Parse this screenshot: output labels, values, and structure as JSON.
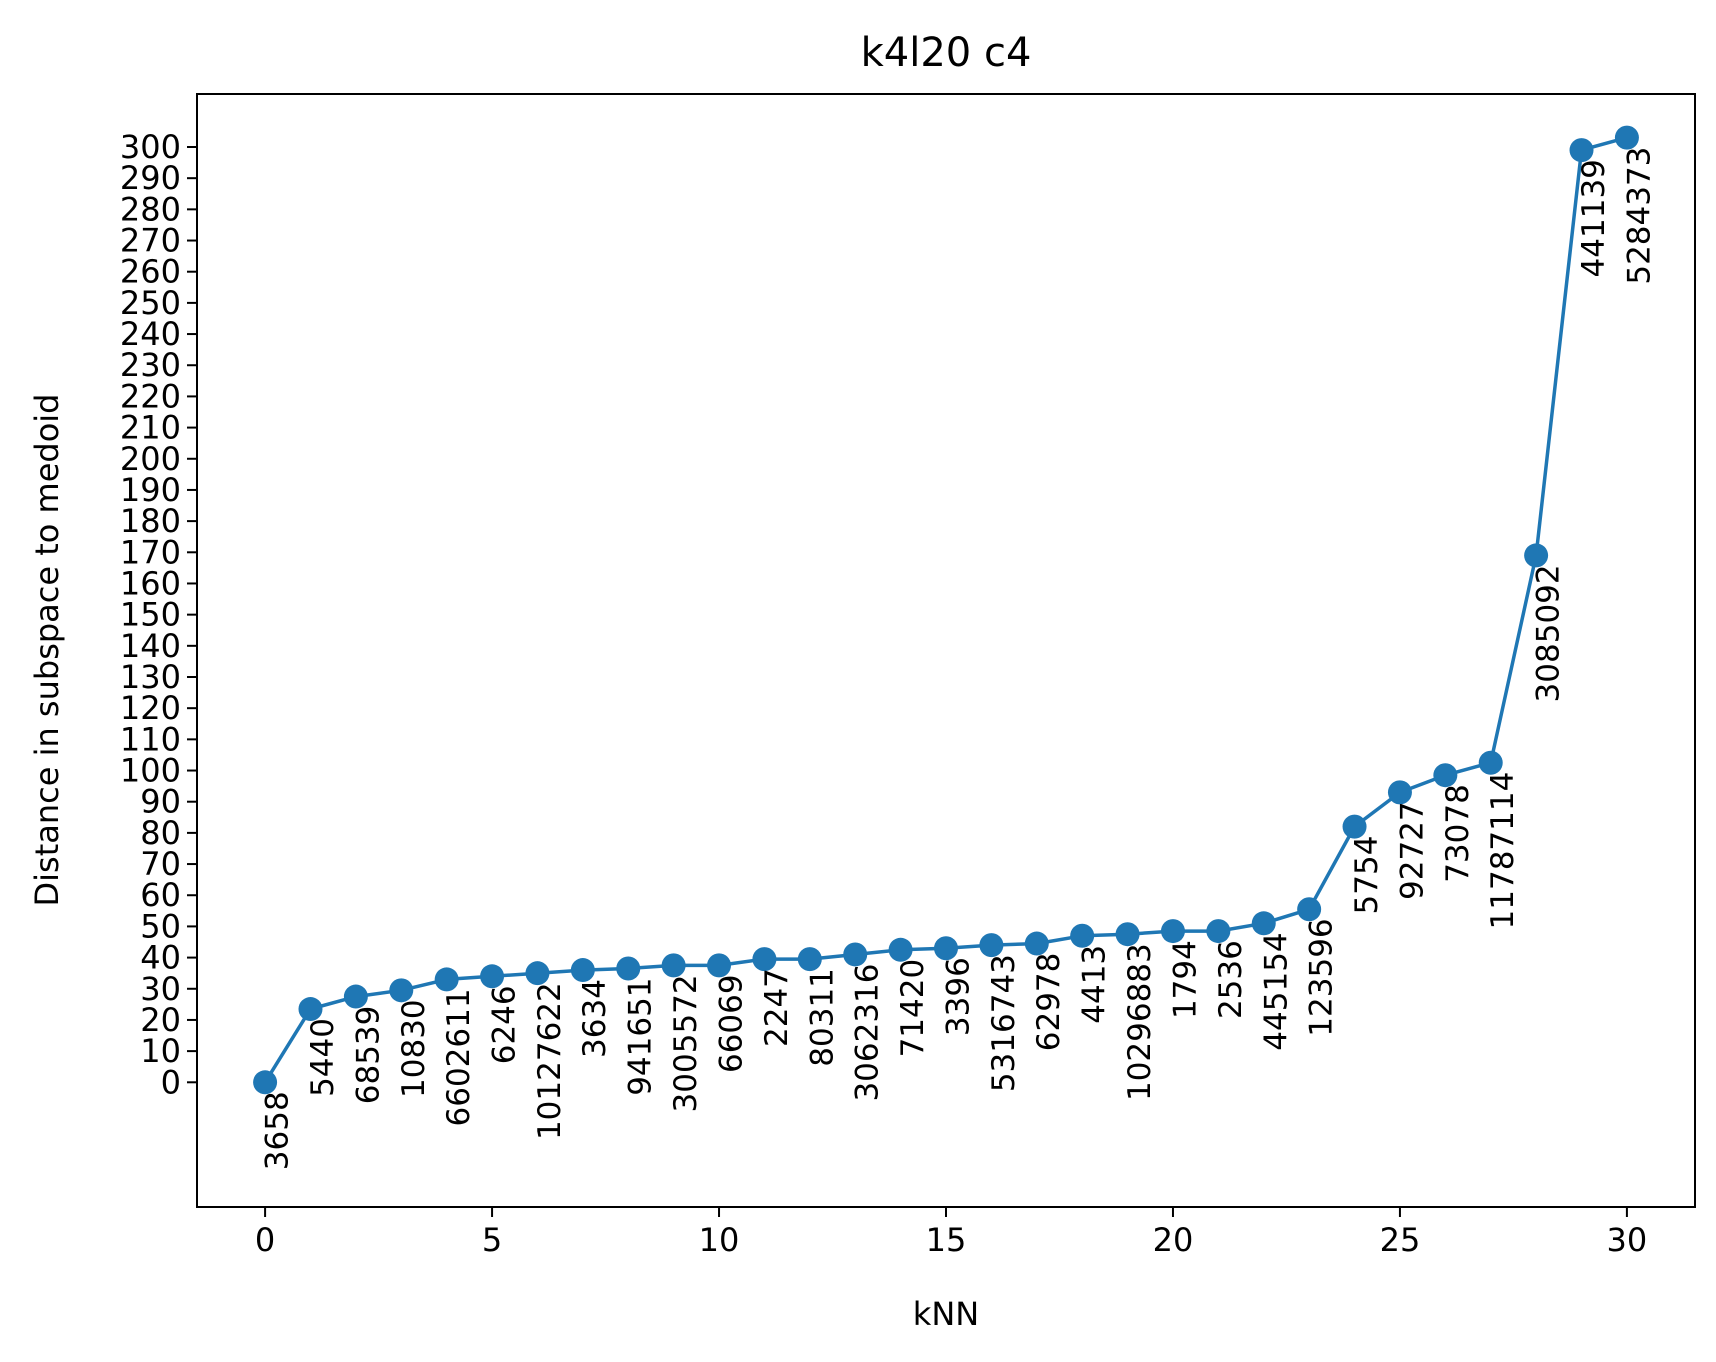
{
  "chart_data": {
    "type": "line",
    "title": "k4l20 c4",
    "xlabel": "kNN",
    "ylabel": "Distance in subspace to medoid",
    "xlim": [
      -1.5,
      31.5
    ],
    "ylim": [
      -40,
      317
    ],
    "xticks": [
      0,
      5,
      10,
      15,
      20,
      25,
      30
    ],
    "yticks": [
      0,
      10,
      20,
      30,
      40,
      50,
      60,
      70,
      80,
      90,
      100,
      110,
      120,
      130,
      140,
      150,
      160,
      170,
      180,
      190,
      200,
      210,
      220,
      230,
      240,
      250,
      260,
      270,
      280,
      290,
      300
    ],
    "grid": false,
    "legend": "none",
    "series": [
      {
        "color": "#1f77b4",
        "marker": "circle",
        "x": [
          0,
          1,
          2,
          3,
          4,
          5,
          6,
          7,
          8,
          9,
          10,
          11,
          12,
          13,
          14,
          15,
          16,
          17,
          18,
          19,
          20,
          21,
          22,
          23,
          24,
          25,
          26,
          27,
          28,
          29,
          30
        ],
        "y": [
          0,
          23.5,
          27.5,
          29.5,
          33,
          34,
          35,
          36,
          36.5,
          37.5,
          37.5,
          39.5,
          39.5,
          41,
          42.5,
          43,
          44,
          44.5,
          47,
          47.5,
          48.5,
          48.5,
          51,
          55.5,
          82,
          93,
          98.5,
          102.5,
          169,
          299,
          303
        ],
        "labels": [
          "3658",
          "5440",
          "68539",
          "10830",
          "6602611",
          "6246",
          "10127622",
          "3634",
          "941651",
          "3005572",
          "66069",
          "2247",
          "80311",
          "3062316",
          "71420",
          "3396",
          "5316743",
          "62978",
          "4413",
          "10296883",
          "1794",
          "2536",
          "445154",
          "123596",
          "5754",
          "92727",
          "73078",
          "11787114",
          "3085092",
          "441139",
          "5284373"
        ]
      }
    ]
  }
}
